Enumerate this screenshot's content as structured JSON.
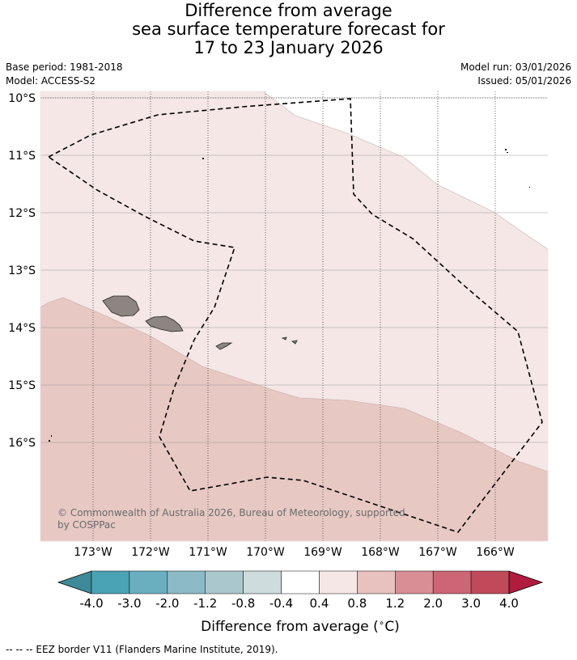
{
  "title": {
    "line1": "Difference from average",
    "line2": "sea surface temperature forecast for",
    "line3": "17 to 23 January 2026"
  },
  "meta": {
    "base_period": "Base period: 1981-2018",
    "model": "Model: ACCESS-S2",
    "model_run": "Model run: 03/01/2026",
    "issued": "Issued: 05/01/2026"
  },
  "map": {
    "lat_labels": [
      "10°S",
      "11°S",
      "12°S",
      "13°S",
      "14°S",
      "15°S",
      "16°S"
    ],
    "lon_labels": [
      "173°W",
      "172°W",
      "171°W",
      "170°W",
      "169°W",
      "168°W",
      "167°W",
      "166°W"
    ],
    "copyright": "© Commonwealth of Australia 2026, Bureau of Meteorology, supported",
    "copyright_line2": "by COSPPac",
    "colors": {
      "band_0_4_0_8": "#f4e7e6",
      "band_0_8_1_2": "#e7c8c3",
      "land": "#8d8581",
      "eez": "#000000"
    }
  },
  "colorbar": {
    "ticks": [
      "-4.0",
      "-3.0",
      "-2.0",
      "-1.2",
      "-0.8",
      "-0.4",
      "0.4",
      "0.8",
      "1.2",
      "2.0",
      "3.0",
      "4.0"
    ],
    "colors": [
      "#3e8a98",
      "#4aa3b5",
      "#6aafc0",
      "#8cbac6",
      "#a9c7cc",
      "#cfdcde",
      "#ffffff",
      "#f4e7e6",
      "#e7c2bf",
      "#d98e96",
      "#cc6676",
      "#c0495a",
      "#b01c3e"
    ],
    "label": "Difference from average ($^\\circ$C)"
  },
  "legend": {
    "eez": "--  --  -- EEZ border V11 (Flanders Marine Institute, 2019)."
  }
}
